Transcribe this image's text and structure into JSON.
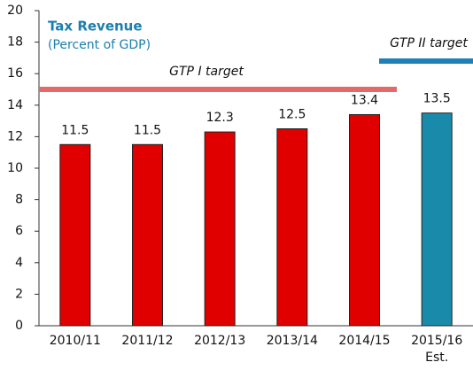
{
  "chart_data": {
    "type": "bar",
    "title": "Tax Revenue",
    "subtitle": "(Percent of GDP)",
    "categories": [
      "2010/11",
      "2011/12",
      "2012/13",
      "2013/14",
      "2014/15",
      "2015/16\nEst."
    ],
    "values": [
      11.5,
      11.5,
      12.3,
      12.5,
      13.4,
      13.5
    ],
    "colors": [
      "#e00000",
      "#e00000",
      "#e00000",
      "#e00000",
      "#e00000",
      "#1a8aaa"
    ],
    "ylim": [
      0,
      20
    ],
    "yticks": [
      0,
      2,
      4,
      6,
      8,
      10,
      12,
      14,
      16,
      18,
      20
    ],
    "grid": false,
    "targets": [
      {
        "label": "GTP I target",
        "value": 15,
        "color": "#e46a6a"
      },
      {
        "label": "GTP II target",
        "value": 16.8,
        "color": "#1f80b8"
      }
    ]
  }
}
